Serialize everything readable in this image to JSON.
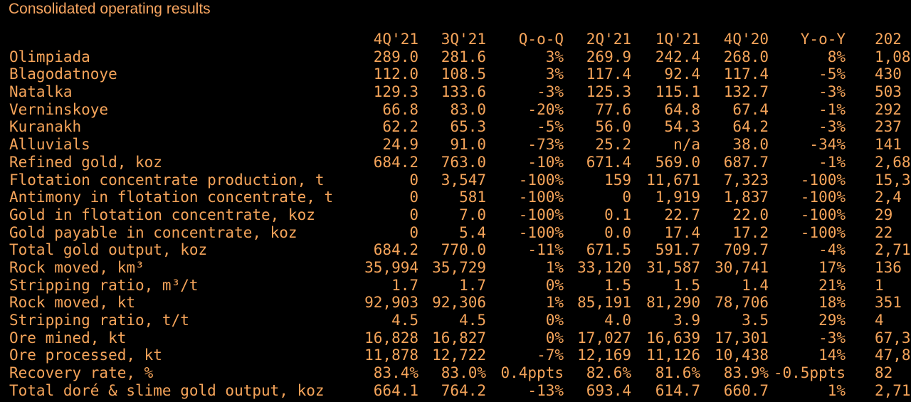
{
  "title": "Consolidated operating results",
  "columns": [
    "4Q'21",
    "3Q'21",
    "Q-o-Q",
    "2Q'21",
    "1Q'21",
    "4Q'20",
    "Y-o-Y",
    "202"
  ],
  "rows": [
    {
      "label": "Olimpiada",
      "values": [
        "289.0",
        "281.6",
        "3%",
        "269.9",
        "242.4",
        "268.0",
        "8%",
        "1,08"
      ]
    },
    {
      "label": "Blagodatnoye",
      "values": [
        "112.0",
        "108.5",
        "3%",
        "117.4",
        "92.4",
        "117.4",
        "-5%",
        "430"
      ]
    },
    {
      "label": "Natalka",
      "values": [
        "129.3",
        "133.6",
        "-3%",
        "125.3",
        "115.1",
        "132.7",
        "-3%",
        "503"
      ]
    },
    {
      "label": "Verninskoye",
      "values": [
        "66.8",
        "83.0",
        "-20%",
        "77.6",
        "64.8",
        "67.4",
        "-1%",
        "292"
      ]
    },
    {
      "label": "Kuranakh",
      "values": [
        "62.2",
        "65.3",
        "-5%",
        "56.0",
        "54.3",
        "64.2",
        "-3%",
        "237"
      ]
    },
    {
      "label": "Alluvials",
      "values": [
        "24.9",
        "91.0",
        "-73%",
        "25.2",
        "n/a",
        "38.0",
        "-34%",
        "141"
      ]
    },
    {
      "label": "Refined gold, koz",
      "values": [
        "684.2",
        "763.0",
        "-10%",
        "671.4",
        "569.0",
        "687.7",
        "-1%",
        "2,68"
      ]
    },
    {
      "label": "Flotation concentrate production, t",
      "values": [
        "0",
        "3,547",
        "-100%",
        "159",
        "11,671",
        "7,323",
        "-100%",
        "15,3"
      ]
    },
    {
      "label": "Antimony in flotation concentrate, t",
      "values": [
        "0",
        "581",
        "-100%",
        "0",
        "1,919",
        "1,837",
        "-100%",
        "2,4"
      ]
    },
    {
      "label": "Gold in flotation concentrate, koz",
      "values": [
        "0",
        "7.0",
        "-100%",
        "0.1",
        "22.7",
        "22.0",
        "-100%",
        "29"
      ]
    },
    {
      "label": "Gold payable in concentrate, koz",
      "values": [
        "0",
        "5.4",
        "-100%",
        "0.0",
        "17.4",
        "17.2",
        "-100%",
        "22"
      ]
    },
    {
      "label": "Total gold output, koz",
      "values": [
        "684.2",
        "770.0",
        "-11%",
        "671.5",
        "591.7",
        "709.7",
        "-4%",
        "2,71"
      ]
    },
    {
      "label": "Rock moved, km³",
      "values": [
        "35,994",
        "35,729",
        "1%",
        "33,120",
        "31,587",
        "30,741",
        "17%",
        "136"
      ]
    },
    {
      "label": "Stripping ratio, m³/t",
      "values": [
        "1.7",
        "1.7",
        "0%",
        "1.5",
        "1.5",
        "1.4",
        "21%",
        "1"
      ]
    },
    {
      "label": "Rock moved, kt",
      "values": [
        "92,903",
        "92,306",
        "1%",
        "85,191",
        "81,290",
        "78,706",
        "18%",
        "351"
      ]
    },
    {
      "label": "Stripping ratio, t/t",
      "values": [
        "4.5",
        "4.5",
        "0%",
        "4.0",
        "3.9",
        "3.5",
        "29%",
        "4"
      ]
    },
    {
      "label": "Ore mined, kt",
      "values": [
        "16,828",
        "16,827",
        "0%",
        "17,027",
        "16,639",
        "17,301",
        "-3%",
        "67,3"
      ]
    },
    {
      "label": "Ore processed, kt",
      "values": [
        "11,878",
        "12,722",
        "-7%",
        "12,169",
        "11,126",
        "10,438",
        "14%",
        "47,8"
      ]
    },
    {
      "label": "Recovery rate, %",
      "values": [
        "83.4%",
        "83.0%",
        "0.4ppts",
        "82.6%",
        "81.6%",
        "83.9%",
        "-0.5ppts",
        "82"
      ]
    },
    {
      "label": "Total doré & slime gold output, koz",
      "values": [
        "664.1",
        "764.2",
        "-13%",
        "693.4",
        "614.7",
        "660.7",
        "1%",
        "2,71"
      ]
    }
  ],
  "colors": {
    "background": "#000000",
    "text": "#f5a45a"
  }
}
